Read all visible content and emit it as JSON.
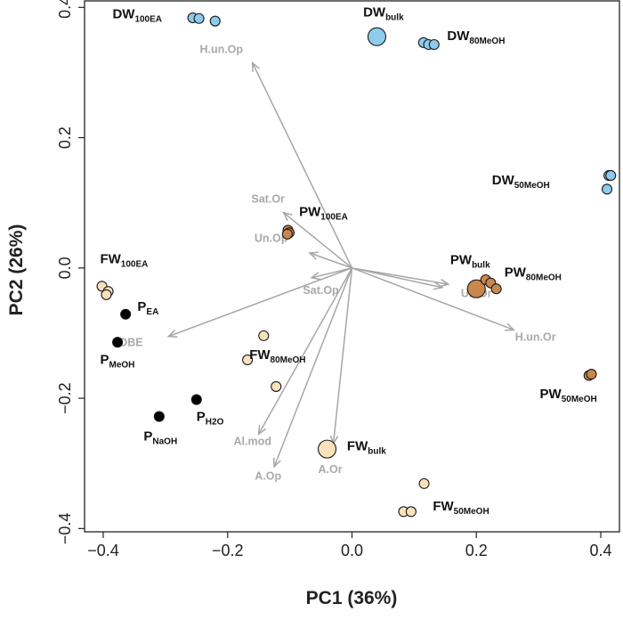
{
  "chart_data": {
    "type": "scatter",
    "subtype": "PCA biplot",
    "xlabel": "PC1 (36%)",
    "ylabel": "PC2 (26%)",
    "xlim": [
      -0.43,
      0.43
    ],
    "ylim": [
      -0.405,
      0.41
    ],
    "xticks": [
      {
        "value": -0.4,
        "label": "−0.4"
      },
      {
        "value": -0.2,
        "label": "−0.2"
      },
      {
        "value": 0.0,
        "label": "0.0"
      },
      {
        "value": 0.2,
        "label": "0.2"
      },
      {
        "value": 0.4,
        "label": "0.4"
      }
    ],
    "yticks": [
      {
        "value": -0.4,
        "label": "−0.4"
      },
      {
        "value": -0.2,
        "label": "−0.2"
      },
      {
        "value": 0.0,
        "label": "0.0"
      },
      {
        "value": 0.2,
        "label": "0.2"
      },
      {
        "value": 0.4,
        "label": "0.4"
      }
    ],
    "colors": {
      "DW": "#8ecbec",
      "PW": "#c9874d",
      "FW": "#f9e2bb",
      "P": "#000000",
      "vector": "#a6a6a6",
      "vector_label": "#a9a9a9"
    },
    "vectors": [
      {
        "name": "H.un.Op",
        "x": -0.16,
        "y": 0.315
      },
      {
        "name": "Sat.Or",
        "x": -0.11,
        "y": 0.085
      },
      {
        "name": "Un.Op",
        "x": -0.068,
        "y": 0.023
      },
      {
        "name": "Sat.Op",
        "x": -0.065,
        "y": -0.015
      },
      {
        "name": "DBE",
        "x": -0.295,
        "y": -0.105
      },
      {
        "name": "Al.mod",
        "x": -0.15,
        "y": -0.255
      },
      {
        "name": "A.Op",
        "x": -0.125,
        "y": -0.305
      },
      {
        "name": "A.Or",
        "x": -0.03,
        "y": -0.27
      },
      {
        "name": "Un.Or",
        "x": 0.155,
        "y": -0.025
      },
      {
        "name": "H.un.Or",
        "x": 0.26,
        "y": -0.095
      },
      {
        "name": "Sat.Or_2",
        "x": 0.145,
        "y": -0.03
      }
    ],
    "vector_labels": [
      {
        "text": "H.un.Op",
        "x": -0.21,
        "y": 0.33
      },
      {
        "text": "Sat.Or",
        "x": -0.135,
        "y": 0.1
      },
      {
        "text": "Un.Op",
        "x": -0.13,
        "y": 0.04
      },
      {
        "text": "Sat.Op",
        "x": -0.05,
        "y": -0.04
      },
      {
        "text": "DBE",
        "x": -0.355,
        "y": -0.12
      },
      {
        "text": "Al.mod",
        "x": -0.16,
        "y": -0.272
      },
      {
        "text": "A.Op",
        "x": -0.135,
        "y": -0.325
      },
      {
        "text": "A.Or",
        "x": -0.035,
        "y": -0.315
      },
      {
        "text": "Un.Or",
        "x": 0.2,
        "y": -0.045
      },
      {
        "text": "H.un.Or",
        "x": 0.295,
        "y": -0.112
      }
    ],
    "series": [
      {
        "name": "DW",
        "color": "#8ecbec",
        "points": [
          {
            "x": -0.256,
            "y": 0.384,
            "size": "small"
          },
          {
            "x": -0.246,
            "y": 0.383,
            "size": "small"
          },
          {
            "x": -0.22,
            "y": 0.379,
            "size": "small"
          },
          {
            "x": 0.04,
            "y": 0.355,
            "size": "large"
          },
          {
            "x": 0.115,
            "y": 0.346,
            "size": "small"
          },
          {
            "x": 0.123,
            "y": 0.343,
            "size": "small"
          },
          {
            "x": 0.132,
            "y": 0.343,
            "size": "small"
          },
          {
            "x": 0.413,
            "y": 0.142,
            "size": "small"
          },
          {
            "x": 0.416,
            "y": 0.142,
            "size": "small"
          },
          {
            "x": 0.41,
            "y": 0.121,
            "size": "small"
          }
        ]
      },
      {
        "name": "PW",
        "color": "#c9874d",
        "points": [
          {
            "x": -0.103,
            "y": 0.058,
            "size": "small"
          },
          {
            "x": -0.101,
            "y": 0.054,
            "size": "small"
          },
          {
            "x": -0.104,
            "y": 0.052,
            "size": "small"
          },
          {
            "x": 0.2,
            "y": -0.032,
            "size": "large"
          },
          {
            "x": 0.215,
            "y": -0.018,
            "size": "small"
          },
          {
            "x": 0.223,
            "y": -0.023,
            "size": "small"
          },
          {
            "x": 0.232,
            "y": -0.032,
            "size": "small"
          },
          {
            "x": 0.381,
            "y": -0.165,
            "size": "small"
          },
          {
            "x": 0.385,
            "y": -0.163,
            "size": "small"
          }
        ]
      },
      {
        "name": "FW",
        "color": "#f9e2bb",
        "points": [
          {
            "x": -0.402,
            "y": -0.028,
            "size": "small"
          },
          {
            "x": -0.392,
            "y": -0.036,
            "size": "small"
          },
          {
            "x": -0.395,
            "y": -0.041,
            "size": "small"
          },
          {
            "x": -0.142,
            "y": -0.104,
            "size": "small"
          },
          {
            "x": -0.168,
            "y": -0.141,
            "size": "small"
          },
          {
            "x": -0.122,
            "y": -0.182,
            "size": "small"
          },
          {
            "x": -0.04,
            "y": -0.278,
            "size": "large"
          },
          {
            "x": 0.116,
            "y": -0.331,
            "size": "small"
          },
          {
            "x": 0.083,
            "y": -0.374,
            "size": "small"
          },
          {
            "x": 0.095,
            "y": -0.374,
            "size": "small"
          }
        ]
      },
      {
        "name": "P",
        "color": "#000000",
        "points": [
          {
            "x": -0.364,
            "y": -0.071,
            "size": "small"
          },
          {
            "x": -0.377,
            "y": -0.114,
            "size": "small"
          },
          {
            "x": -0.25,
            "y": -0.202,
            "size": "small"
          },
          {
            "x": -0.31,
            "y": -0.228,
            "size": "small"
          }
        ]
      }
    ],
    "group_labels": [
      {
        "main": "DW",
        "sub": "100EA",
        "x": -0.385,
        "y": 0.383
      },
      {
        "main": "DW",
        "sub": "bulk",
        "x": 0.018,
        "y": 0.386
      },
      {
        "main": "DW",
        "sub": "80MeOH",
        "x": 0.153,
        "y": 0.35
      },
      {
        "main": "DW",
        "sub": "50MeOH",
        "x": 0.225,
        "y": 0.128
      },
      {
        "main": "PW",
        "sub": "100EA",
        "x": -0.085,
        "y": 0.08
      },
      {
        "main": "PW",
        "sub": "bulk",
        "x": 0.158,
        "y": 0.006
      },
      {
        "main": "PW",
        "sub": "80MeOH",
        "x": 0.245,
        "y": -0.013
      },
      {
        "main": "PW",
        "sub": "50MeOH",
        "x": 0.302,
        "y": -0.2
      },
      {
        "main": "FW",
        "sub": "100EA",
        "x": -0.405,
        "y": 0.007
      },
      {
        "main": "FW",
        "sub": "80MeOH",
        "x": -0.165,
        "y": -0.14
      },
      {
        "main": "FW",
        "sub": "bulk",
        "x": -0.008,
        "y": -0.28
      },
      {
        "main": "FW",
        "sub": "50MeOH",
        "x": 0.13,
        "y": -0.372
      },
      {
        "main": "P",
        "sub": "EA",
        "x": -0.345,
        "y": -0.066
      },
      {
        "main": "P",
        "sub": "MeOH",
        "x": -0.405,
        "y": -0.147
      },
      {
        "main": "P",
        "sub": "H2O",
        "x": -0.25,
        "y": -0.235
      },
      {
        "main": "P",
        "sub": "NaOH",
        "x": -0.335,
        "y": -0.265
      }
    ]
  }
}
